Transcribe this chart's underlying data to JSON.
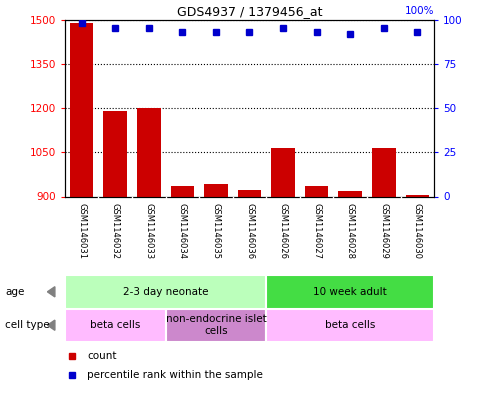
{
  "title": "GDS4937 / 1379456_at",
  "samples": [
    "GSM1146031",
    "GSM1146032",
    "GSM1146033",
    "GSM1146034",
    "GSM1146035",
    "GSM1146036",
    "GSM1146026",
    "GSM1146027",
    "GSM1146028",
    "GSM1146029",
    "GSM1146030"
  ],
  "counts": [
    1490,
    1190,
    1200,
    935,
    942,
    922,
    1065,
    935,
    920,
    1065,
    905
  ],
  "percentile_ranks": [
    98,
    95,
    95,
    93,
    93,
    93,
    95,
    93,
    92,
    95,
    93
  ],
  "ylim_left": [
    900,
    1500
  ],
  "ylim_right": [
    0,
    100
  ],
  "yticks_left": [
    900,
    1050,
    1200,
    1350,
    1500
  ],
  "yticks_right": [
    0,
    25,
    50,
    75,
    100
  ],
  "bar_color": "#cc0000",
  "dot_color": "#0000cc",
  "age_groups": [
    {
      "label": "2-3 day neonate",
      "start": 0,
      "end": 6,
      "color": "#bbffbb"
    },
    {
      "label": "10 week adult",
      "start": 6,
      "end": 11,
      "color": "#44dd44"
    }
  ],
  "cell_type_groups": [
    {
      "label": "beta cells",
      "start": 0,
      "end": 3,
      "color": "#ffbbff"
    },
    {
      "label": "non-endocrine islet\ncells",
      "start": 3,
      "end": 6,
      "color": "#cc88cc"
    },
    {
      "label": "beta cells",
      "start": 6,
      "end": 11,
      "color": "#ffbbff"
    }
  ],
  "tick_label_area_color": "#cccccc",
  "border_color": "#888888"
}
